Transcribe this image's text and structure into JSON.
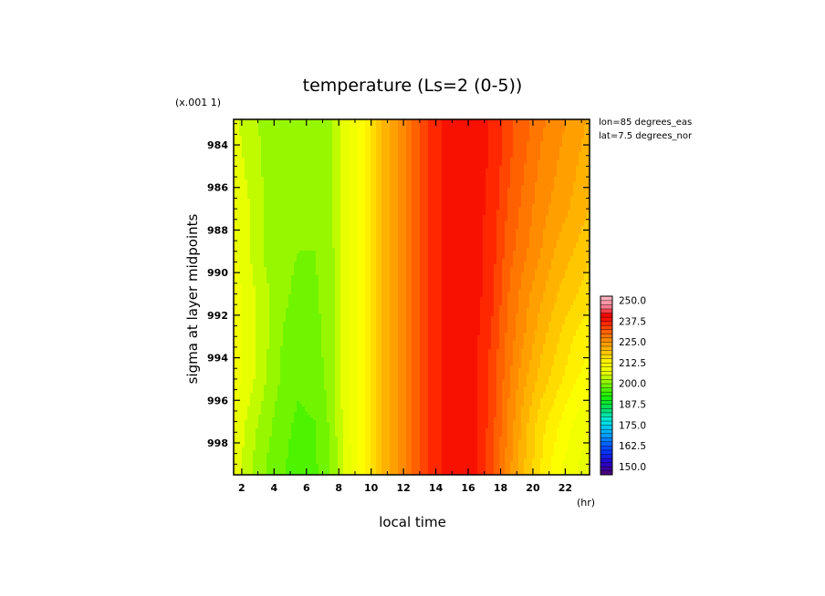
{
  "chart_data": {
    "type": "heatmap",
    "title": "temperature (Ls=2 (0-5))",
    "xlabel": "local time",
    "ylabel": "sigma at layer midpoints",
    "x_unit": "(hr)",
    "y_scale_note": "(x.001 1)",
    "annotations": [
      "lon=85 degrees_eas",
      "lat=7.5 degrees_nor"
    ],
    "xlim": [
      1.5,
      23.5
    ],
    "ylim": [
      999.5,
      982.8
    ],
    "x_ticks": [
      2,
      4,
      6,
      8,
      10,
      12,
      14,
      16,
      18,
      20,
      22
    ],
    "y_ticks": [
      984,
      986,
      988,
      990,
      992,
      994,
      996,
      998
    ],
    "x": [
      1.5,
      2.5,
      3.5,
      4.5,
      5.5,
      6.5,
      7.5,
      8.5,
      9.5,
      10.5,
      11.5,
      12.5,
      13.5,
      14.5,
      15.5,
      16.5,
      17.5,
      18.5,
      19.5,
      20.5,
      21.5,
      22.5,
      23.5
    ],
    "y": [
      983,
      985,
      987,
      989,
      991,
      993,
      995,
      997,
      999
    ],
    "z": [
      [
        206,
        203,
        202,
        201,
        200.5,
        200.5,
        202,
        207,
        212,
        219,
        224,
        230,
        235,
        238,
        239,
        238.5,
        237,
        233,
        231,
        228,
        226,
        224,
        222
      ],
      [
        207,
        204,
        202,
        201,
        200.5,
        200.5,
        202,
        207,
        212,
        219,
        224,
        230,
        235,
        238,
        239,
        238.5,
        237,
        233,
        230,
        227,
        225,
        223,
        221
      ],
      [
        208,
        205,
        202,
        200.5,
        200,
        200.5,
        202,
        207,
        212,
        219,
        224,
        230,
        235,
        238,
        239,
        238.5,
        236.5,
        232,
        229,
        226,
        224,
        222,
        220
      ],
      [
        208,
        205,
        202,
        200.5,
        200,
        200,
        201.5,
        207,
        212,
        219,
        224,
        230,
        235,
        238,
        239,
        238.5,
        236,
        231,
        228,
        225,
        222,
        220,
        218
      ],
      [
        209,
        206,
        203,
        200.5,
        199.5,
        199.5,
        201.5,
        207,
        212,
        219,
        224,
        230,
        235,
        238,
        239,
        238.5,
        235.5,
        230,
        226,
        223,
        220,
        218,
        216
      ],
      [
        209,
        206,
        203,
        200,
        198.5,
        199,
        201.5,
        207,
        212,
        219,
        224,
        230,
        235,
        238,
        239,
        238,
        234.5,
        229,
        225,
        221,
        218,
        215,
        213
      ],
      [
        209,
        206,
        202.5,
        199.5,
        198,
        198.5,
        201,
        207,
        212,
        219,
        224,
        230,
        235,
        238,
        239,
        238,
        234,
        228,
        223,
        219,
        216,
        213,
        211
      ],
      [
        208,
        204,
        201,
        198.5,
        197,
        197.5,
        200.5,
        207,
        212,
        219,
        224,
        230,
        235,
        238,
        239,
        238,
        233.5,
        227,
        221,
        216,
        213,
        210,
        208
      ],
      [
        207,
        203,
        200,
        198,
        196,
        197,
        200,
        206,
        212,
        219,
        224,
        230,
        235,
        238,
        239,
        238,
        233,
        226,
        220,
        215,
        211,
        208,
        206
      ]
    ],
    "colorbar": {
      "ticks": [
        "250.0",
        "237.5",
        "225.0",
        "212.5",
        "200.0",
        "187.5",
        "175.0",
        "162.5",
        "150.0"
      ],
      "min": 145,
      "max": 252.5,
      "step": 2.5
    },
    "colors": {
      "background": "#ffffff",
      "frame": "#000000"
    }
  }
}
